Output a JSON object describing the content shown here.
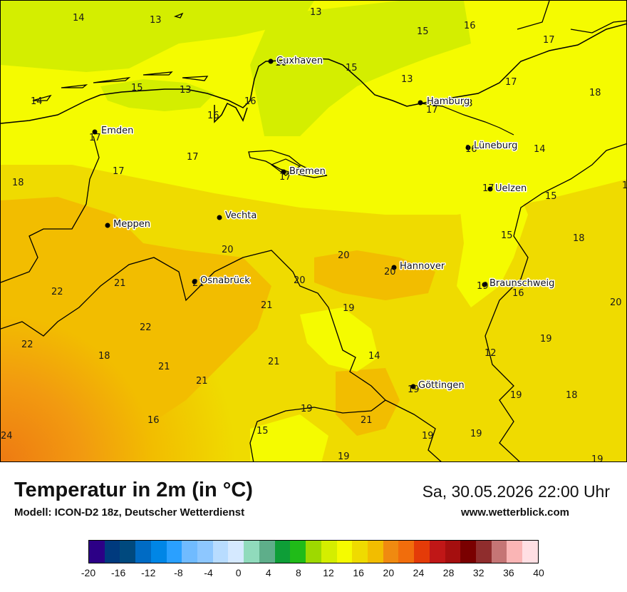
{
  "map": {
    "title": "Temperatur in 2m (in °C)",
    "model": "Modell: ICON-D2 18z, Deutscher Wetterdienst",
    "datetime": "Sa, 30.05.2026 22:00 Uhr",
    "website": "www.wetterblick.com",
    "cities": [
      {
        "name": "Cuxhaven",
        "value": "16"
      },
      {
        "name": "Hamburg",
        "value": "17"
      },
      {
        "name": "Emden",
        "value": "17"
      },
      {
        "name": "Lüneburg",
        "value": "16"
      },
      {
        "name": "Bremen",
        "value": "17"
      },
      {
        "name": "Uelzen",
        "value": "17"
      },
      {
        "name": "Vechta",
        "value": ""
      },
      {
        "name": "Meppen",
        "value": ""
      },
      {
        "name": "Hannover",
        "value": "20"
      },
      {
        "name": "Osnabrück",
        "value": "21"
      },
      {
        "name": "Braunschweig",
        "value": "19"
      },
      {
        "name": "Göttingen",
        "value": "19"
      }
    ],
    "grid_values": [
      "14",
      "13",
      "13",
      "15",
      "16",
      "17",
      "16",
      "15",
      "13",
      "17",
      "18",
      "15",
      "13",
      "14",
      "16",
      "16",
      "13",
      "17",
      "14",
      "17",
      "17",
      "18",
      "18",
      "15",
      "18",
      "15",
      "20",
      "20",
      "21",
      "22",
      "20",
      "21",
      "19",
      "20",
      "22",
      "19",
      "22",
      "18",
      "21",
      "21",
      "14",
      "12",
      "21",
      "16",
      "19",
      "18",
      "24",
      "15",
      "21",
      "19",
      "19",
      "19",
      "19",
      "19",
      "16",
      "16"
    ]
  },
  "legend": {
    "colors": [
      "#2c0086",
      "#003a7e",
      "#00497e",
      "#006bc4",
      "#0086e6",
      "#2aa0ff",
      "#70bbff",
      "#8dc7ff",
      "#b8dcff",
      "#d5e9ff",
      "#90dbbc",
      "#5eae8a",
      "#0e9e37",
      "#20bb18",
      "#9ed900",
      "#d4ee00",
      "#f5fb00",
      "#efdb00",
      "#f2bd00",
      "#f08a10",
      "#f16d0c",
      "#e43b08",
      "#c01717",
      "#a50f0f",
      "#7a0000",
      "#8f2d2d",
      "#c57575",
      "#fab5b5",
      "#ffdfe3"
    ],
    "ticks": [
      "-20",
      "-16",
      "-12",
      "-8",
      "-4",
      "0",
      "4",
      "8",
      "12",
      "16",
      "20",
      "24",
      "28",
      "32",
      "36",
      "40"
    ]
  }
}
